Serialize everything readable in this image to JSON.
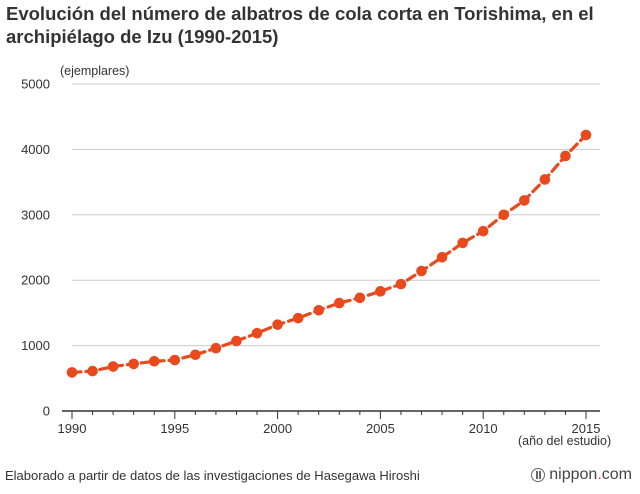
{
  "chart_data": {
    "type": "line",
    "title": "Evolución del número de albatros de cola corta en Torishima, en el archipiélago de Izu (1990-2015)",
    "ylabel": "(ejemplares)",
    "xlabel": "(año del estudio)",
    "ylim": [
      0,
      5000
    ],
    "xlim": [
      1990,
      2015
    ],
    "yticks": [
      0,
      1000,
      2000,
      3000,
      4000,
      5000
    ],
    "xticks": [
      1990,
      1995,
      2000,
      2005,
      2010,
      2015
    ],
    "grid": true,
    "legend": "none",
    "series": [
      {
        "name": "Albatros de cola corta",
        "color": "#e8491d",
        "x": [
          1990,
          1991,
          1992,
          1993,
          1994,
          1995,
          1996,
          1997,
          1998,
          1999,
          2000,
          2001,
          2002,
          2003,
          2004,
          2005,
          2006,
          2007,
          2008,
          2009,
          2010,
          2011,
          2012,
          2013,
          2014,
          2015
        ],
        "values": [
          590,
          610,
          680,
          720,
          760,
          780,
          860,
          960,
          1070,
          1190,
          1320,
          1420,
          1540,
          1650,
          1730,
          1830,
          1940,
          2140,
          2350,
          2570,
          2750,
          3000,
          3220,
          3540,
          3900,
          4220
        ]
      }
    ]
  },
  "footer": {
    "source": "Elaborado a partir de datos de las investigaciones de Hasegawa Hiroshi",
    "logo_name": "nippon",
    "logo_dot": ".",
    "logo_tld": "com"
  },
  "colors": {
    "series": "#e8491d",
    "grid": "#cccccc",
    "axis": "#333333"
  }
}
